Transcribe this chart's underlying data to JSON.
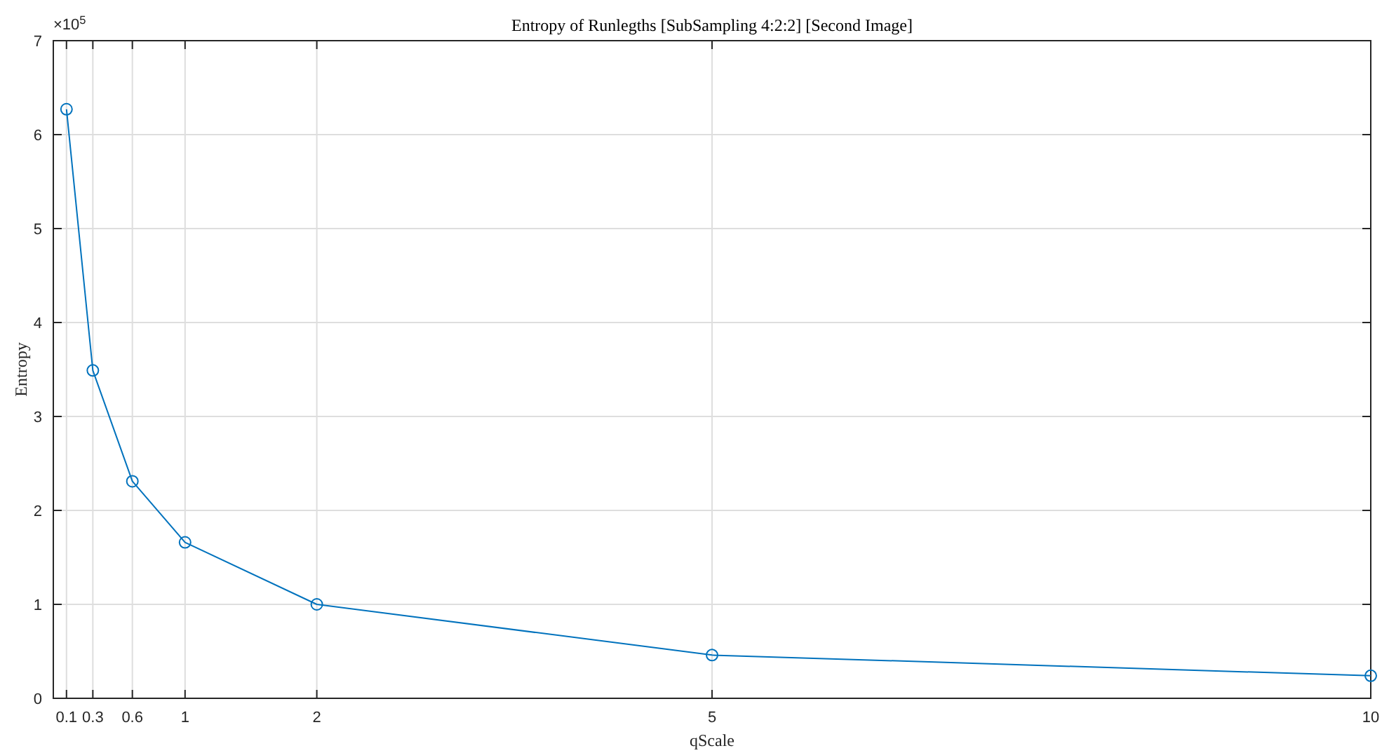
{
  "chart_data": {
    "type": "line",
    "title": "Entropy of Runlegths [SubSampling 4:2:2] [Second Image]",
    "xlabel": "qScale",
    "ylabel": "Entropy",
    "annotations": [
      "×10$^{5}$"
    ],
    "x": [
      0.1,
      0.3,
      0.6,
      1,
      2,
      5,
      10
    ],
    "series": [
      {
        "color": "#0072bd",
        "values": [
          6.27,
          3.49,
          2.31,
          1.66,
          1.0,
          0.46,
          0.24
        ]
      }
    ],
    "xlim": [
      0,
      10
    ],
    "xticks": [
      0.1,
      0.3,
      0.6,
      1,
      2,
      5,
      10
    ],
    "ylim": [
      0,
      7
    ],
    "yticks": [
      0,
      1,
      2,
      3,
      4,
      5,
      6,
      7
    ],
    "grid": true,
    "marker": "circle",
    "line_style": "solid"
  }
}
